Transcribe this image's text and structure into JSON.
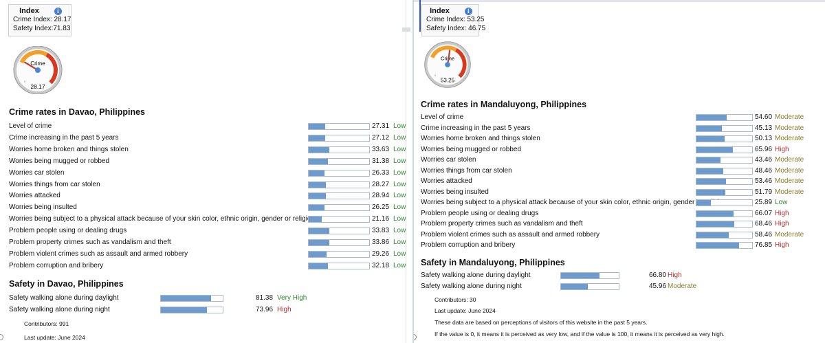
{
  "left": {
    "index": {
      "title": "Index",
      "crime_label": "Crime Index:",
      "crime_value": "28.17",
      "safety_label": "Safety Index:",
      "safety_value": "71.83"
    },
    "gauge": {
      "label": "Crime",
      "value": "28.17",
      "min_label": "0",
      "max_label": "100",
      "fraction": 0.2817
    },
    "crime_title": "Crime rates in Davao, Philippines",
    "crime_rows": [
      {
        "label": "Level of crime",
        "value": "27.31",
        "level": "Low"
      },
      {
        "label": "Crime increasing in the past 5 years",
        "value": "27.12",
        "level": "Low"
      },
      {
        "label": "Worries home broken and things stolen",
        "value": "33.63",
        "level": "Low"
      },
      {
        "label": "Worries being mugged or robbed",
        "value": "31.38",
        "level": "Low"
      },
      {
        "label": "Worries car stolen",
        "value": "26.33",
        "level": "Low"
      },
      {
        "label": "Worries things from car stolen",
        "value": "28.27",
        "level": "Low"
      },
      {
        "label": "Worries attacked",
        "value": "28.94",
        "level": "Low"
      },
      {
        "label": "Worries being insulted",
        "value": "26.25",
        "level": "Low"
      },
      {
        "label": "Worries being subject to a physical attack because of your skin color, ethnic origin, gender or religion",
        "value": "21.16",
        "level": "Low"
      },
      {
        "label": "Problem people using or dealing drugs",
        "value": "33.83",
        "level": "Low"
      },
      {
        "label": "Problem property crimes such as vandalism and theft",
        "value": "33.86",
        "level": "Low"
      },
      {
        "label": "Problem violent crimes such as assault and armed robbery",
        "value": "29.26",
        "level": "Low"
      },
      {
        "label": "Problem corruption and bribery",
        "value": "32.18",
        "level": "Low"
      }
    ],
    "safety_title": "Safety in Davao, Philippines",
    "safety_rows": [
      {
        "label": "Safety walking alone during daylight",
        "value": "81.38",
        "level": "Very High"
      },
      {
        "label": "Safety walking alone during night",
        "value": "73.96",
        "level": "High"
      }
    ],
    "contributors": "Contributors: 991",
    "last_update": "Last update: June 2024"
  },
  "right": {
    "index": {
      "title": "Index",
      "crime_label": "Crime Index:",
      "crime_value": "53.25",
      "safety_label": "Safety Index:",
      "safety_value": "46.75"
    },
    "gauge": {
      "label": "Crime",
      "value": "53.25",
      "min_label": "0",
      "max_label": "100",
      "fraction": 0.5325
    },
    "crime_title": "Crime rates in Mandaluyong, Philippines",
    "crime_rows": [
      {
        "label": "Level of crime",
        "value": "54.60",
        "level": "Moderate"
      },
      {
        "label": "Crime increasing in the past 5 years",
        "value": "45.13",
        "level": "Moderate"
      },
      {
        "label": "Worries home broken and things stolen",
        "value": "50.13",
        "level": "Moderate"
      },
      {
        "label": "Worries being mugged or robbed",
        "value": "65.96",
        "level": "High"
      },
      {
        "label": "Worries car stolen",
        "value": "43.46",
        "level": "Moderate"
      },
      {
        "label": "Worries things from car stolen",
        "value": "48.46",
        "level": "Moderate"
      },
      {
        "label": "Worries attacked",
        "value": "53.46",
        "level": "Moderate"
      },
      {
        "label": "Worries being insulted",
        "value": "51.79",
        "level": "Moderate"
      },
      {
        "label": "Worries being subject to a physical attack because of your skin color, ethnic origin, gender or religion",
        "value": "25.89",
        "level": "Low"
      },
      {
        "label": "Problem people using or dealing drugs",
        "value": "66.07",
        "level": "High"
      },
      {
        "label": "Problem property crimes such as vandalism and theft",
        "value": "68.46",
        "level": "High"
      },
      {
        "label": "Problem violent crimes such as assault and armed robbery",
        "value": "58.46",
        "level": "Moderate"
      },
      {
        "label": "Problem corruption and bribery",
        "value": "76.85",
        "level": "High"
      }
    ],
    "safety_title": "Safety in Mandaluyong, Philippines",
    "safety_rows": [
      {
        "label": "Safety walking alone during daylight",
        "value": "66.80",
        "level": "High"
      },
      {
        "label": "Safety walking alone during night",
        "value": "45.96",
        "level": "Moderate"
      }
    ],
    "contributors": "Contributors: 30",
    "last_update": "Last update: June 2024",
    "note1": "These data are based on perceptions of visitors of this website in the past 5 years.",
    "note2": "If the value is 0, it means it is perceived as very low, and if the value is 100, it means it is perceived as very high."
  },
  "colors": {
    "bar_fill": "#6e9bcb",
    "low": "#2f8a2f",
    "moderate": "#8a7a2a",
    "high": "#b03030"
  },
  "icons": {
    "info": "info-icon"
  }
}
